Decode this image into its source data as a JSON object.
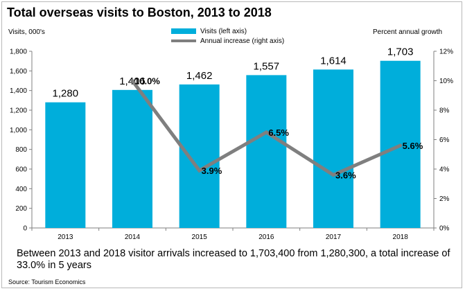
{
  "title": "Total overseas visits to Boston, 2013 to 2018",
  "left_axis_unit": "Visits, 000's",
  "right_axis_unit": "Percent annual growth",
  "legend": {
    "bars": "Visits (left axis)",
    "line": "Annual increase (right axis)"
  },
  "caption": "Between 2013 and 2018 visitor arrivals increased to 1,703,400 from 1,280,300, a total increase of 33.0% in 5 years",
  "source": "Source: Tourism Economics",
  "colors": {
    "bars": "#00aedb",
    "line": "#7f7f7f"
  },
  "chart_data": {
    "type": "bar",
    "categories": [
      "2013",
      "2014",
      "2015",
      "2016",
      "2017",
      "2018"
    ],
    "series": [
      {
        "name": "Visits (left axis)",
        "type": "bar",
        "axis": "left",
        "values": [
          1280,
          1406,
          1462,
          1557,
          1614,
          1703
        ],
        "labels": [
          "1,280",
          "1,406",
          "1,462",
          "1,557",
          "1,614",
          "1,703"
        ]
      },
      {
        "name": "Annual increase (right axis)",
        "type": "line",
        "axis": "right",
        "x": [
          "2014",
          "2015",
          "2016",
          "2017",
          "2018"
        ],
        "values": [
          10.0,
          3.9,
          6.5,
          3.6,
          5.6
        ],
        "labels": [
          "10.0%",
          "3.9%",
          "6.5%",
          "3.6%",
          "5.6%"
        ]
      }
    ],
    "y_left": {
      "lim": [
        0,
        1800
      ],
      "ticks": [
        0,
        200,
        400,
        600,
        800,
        1000,
        1200,
        1400,
        1600,
        1800
      ],
      "tick_labels": [
        "0",
        "200",
        "400",
        "600",
        "800",
        "1,000",
        "1,200",
        "1,400",
        "1,600",
        "1,800"
      ]
    },
    "y_right": {
      "lim": [
        0,
        12
      ],
      "ticks": [
        0,
        2,
        4,
        6,
        8,
        10,
        12
      ],
      "tick_labels": [
        "0%",
        "2%",
        "4%",
        "6%",
        "8%",
        "10%",
        "12%"
      ]
    },
    "grid": false
  }
}
